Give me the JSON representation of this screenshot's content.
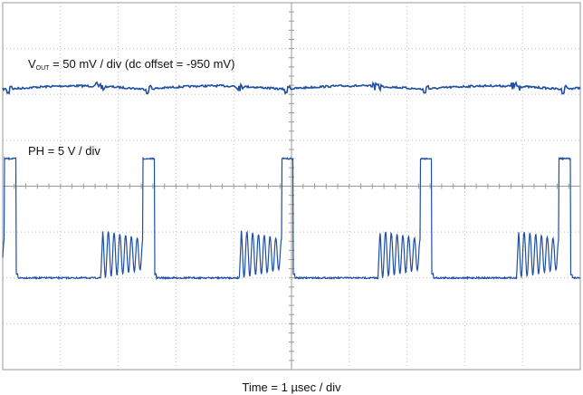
{
  "chart_data": {
    "type": "line",
    "title": "",
    "xlabel": "Time = 1 µsec / div",
    "grid": true,
    "divisions": {
      "x": 10,
      "y": 8
    },
    "time_per_div_us": 1,
    "switching_period_us": 2.4,
    "series": [
      {
        "name": "V",
        "name_subscript": "OUT",
        "label_rest": " = 50 mV / div (dc offset = -950 mV)",
        "scale": "50 mV / div",
        "dc_offset": "-950 mV",
        "baseline_div": 6.15,
        "ripple_peak_to_peak_div": 0.15,
        "color": "#1f4fa3"
      },
      {
        "name": "PH",
        "label_rest": " = 5 V / div",
        "scale": "5 V / div",
        "low_level_div": 2.0,
        "high_level_div": 4.6,
        "pulse_width_us": 0.15,
        "ringing_start_us": 1.65,
        "ringing_end_us": 2.35,
        "ringing_cycles": 7,
        "color": "#1f4fa3"
      }
    ]
  }
}
